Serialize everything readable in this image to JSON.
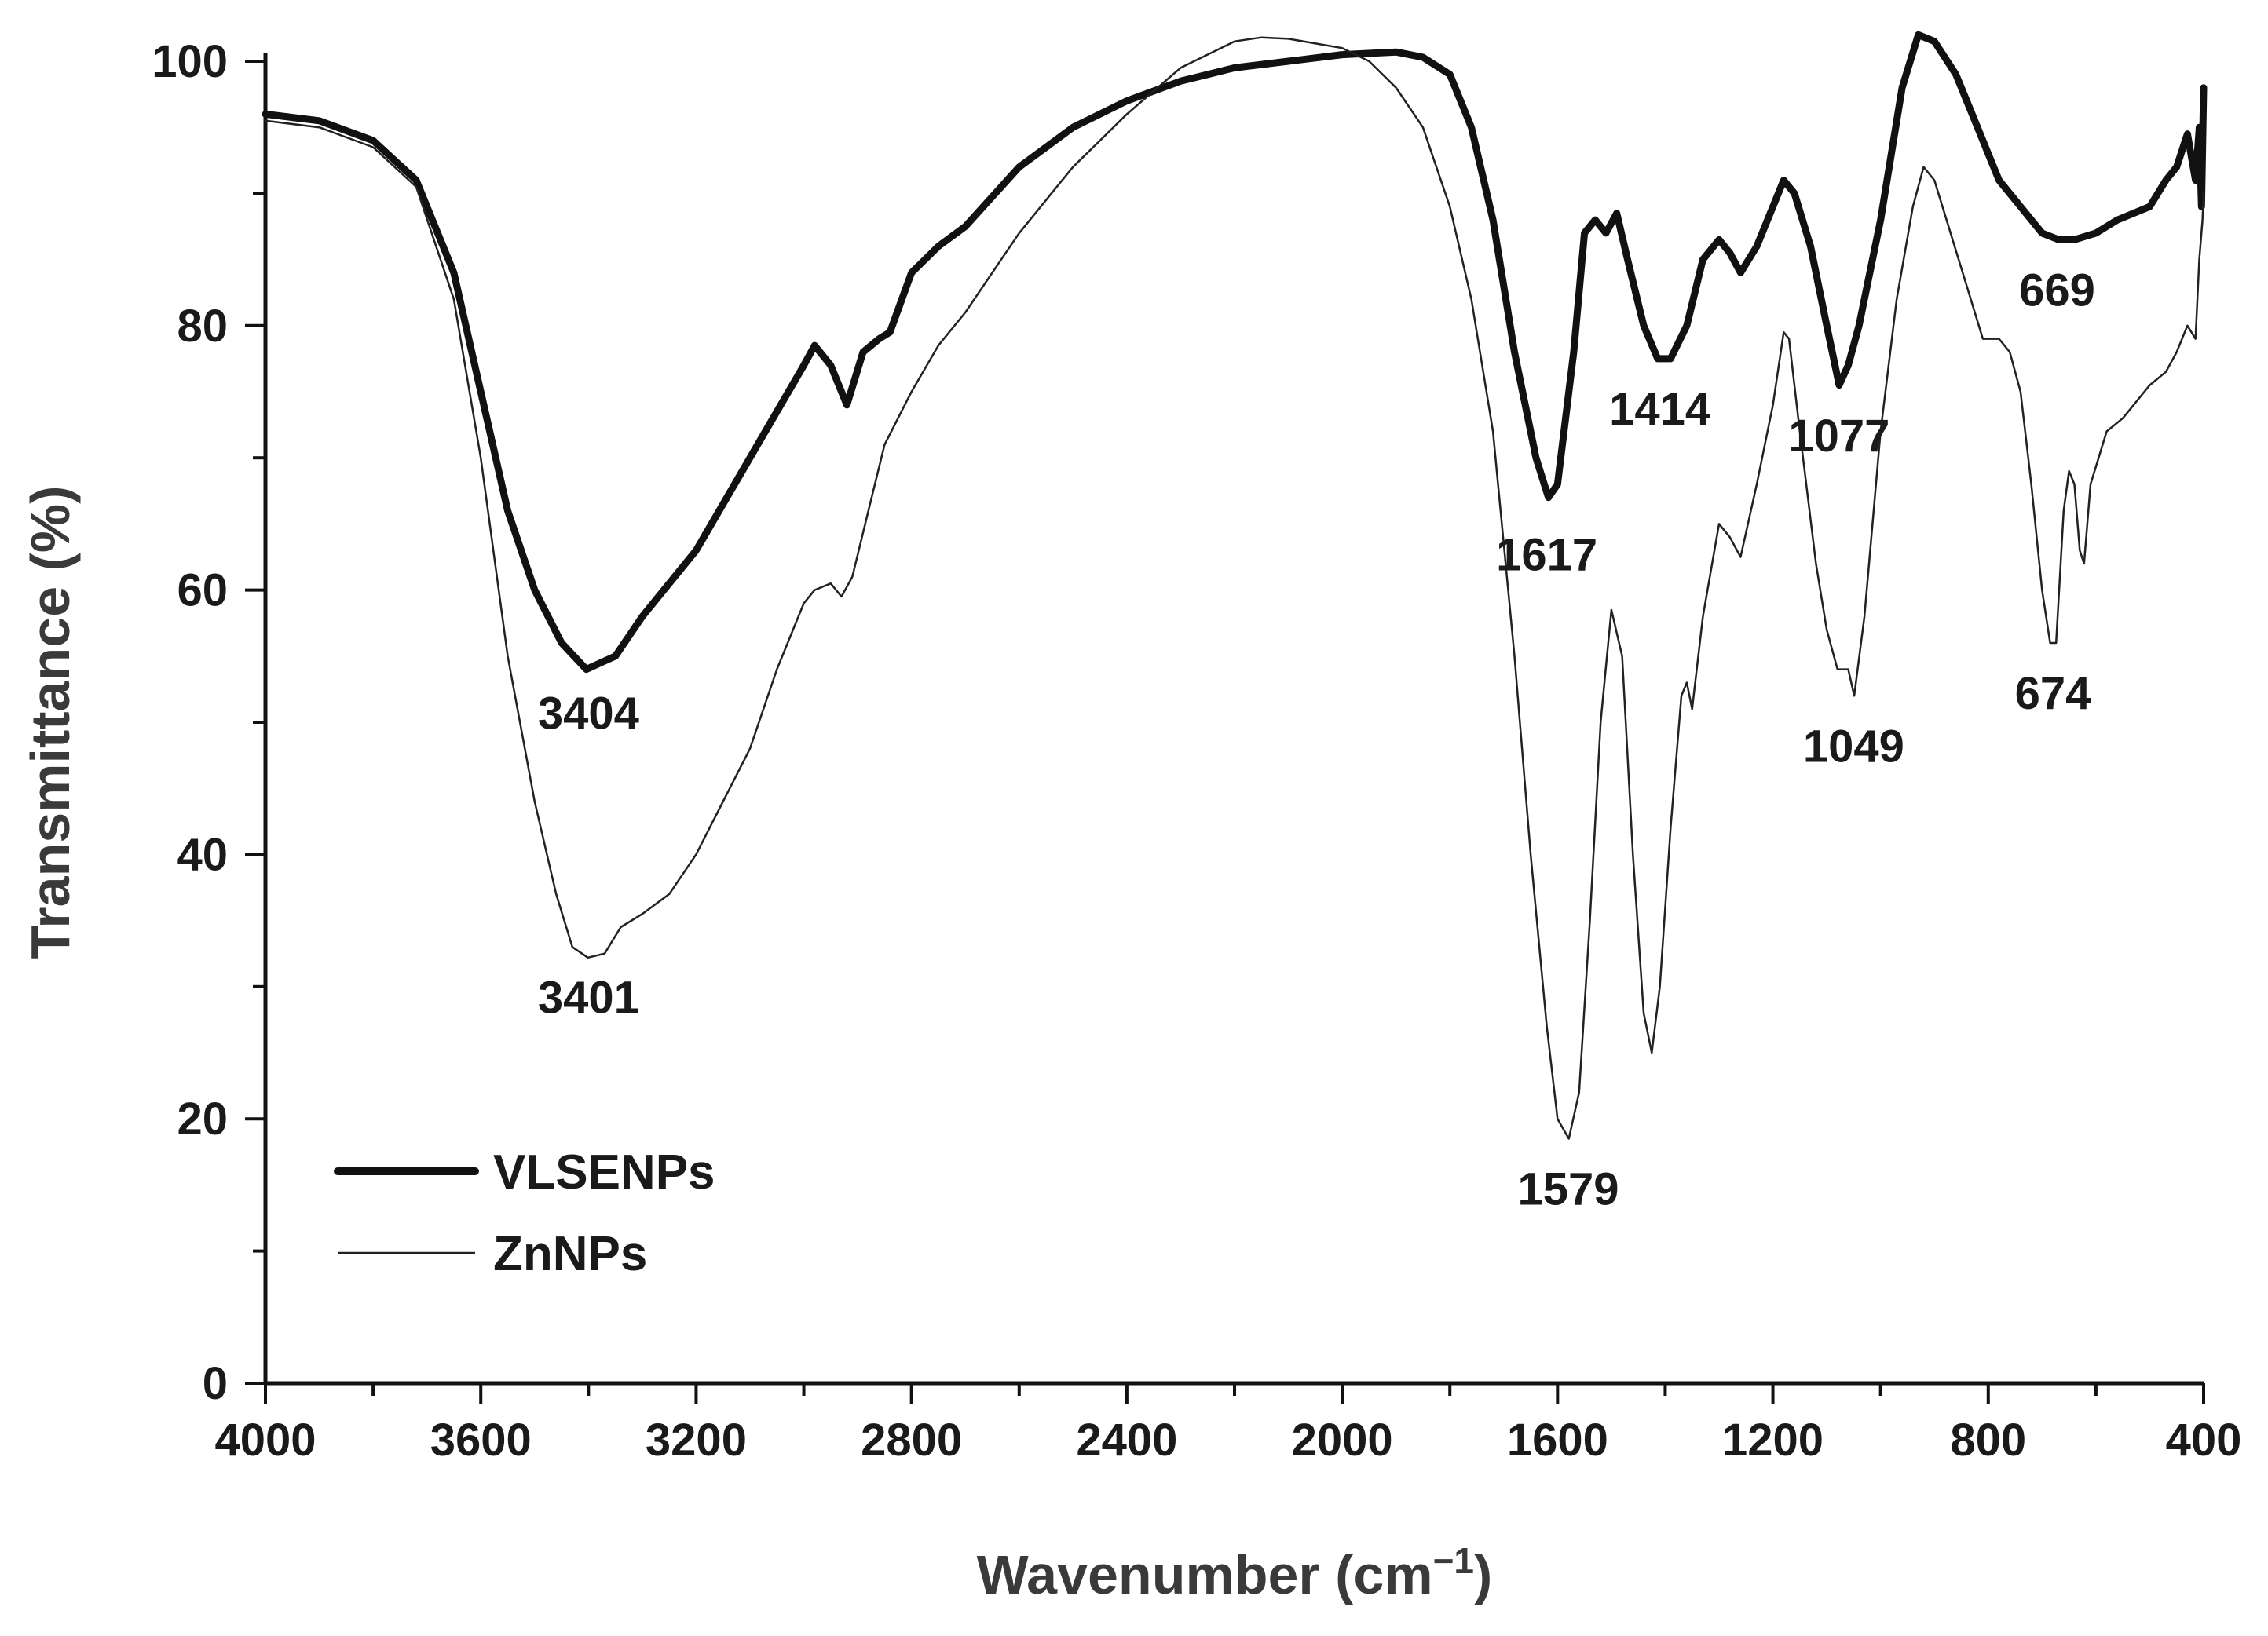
{
  "chart_data": {
    "type": "line",
    "title": "",
    "xlabel": "Wavenumber (cm",
    "xlabel_superscript": "−1",
    "xlabel_close": ")",
    "ylabel": "Transmittance (%)",
    "xlim": [
      4000,
      400
    ],
    "ylim": [
      0,
      100
    ],
    "x_ticks": [
      4000,
      3600,
      3200,
      2800,
      2400,
      2000,
      1600,
      1200,
      800,
      400
    ],
    "y_ticks": [
      0,
      20,
      40,
      60,
      80,
      100
    ],
    "x_tick_labels": [
      "4000",
      "3600",
      "3200",
      "2800",
      "2400",
      "2000",
      "1600",
      "1200",
      "800",
      "400"
    ],
    "y_tick_labels": [
      "0",
      "20",
      "40",
      "60",
      "80",
      "100"
    ],
    "legend_position": "bottom-left",
    "series": [
      {
        "name": "VLSENPs",
        "style": "thick",
        "color": "#111111",
        "points": [
          [
            4000,
            96
          ],
          [
            3900,
            95.5
          ],
          [
            3800,
            94
          ],
          [
            3720,
            91
          ],
          [
            3650,
            84
          ],
          [
            3600,
            75
          ],
          [
            3550,
            66
          ],
          [
            3500,
            60
          ],
          [
            3450,
            56
          ],
          [
            3404,
            54
          ],
          [
            3350,
            55
          ],
          [
            3300,
            58
          ],
          [
            3200,
            63
          ],
          [
            3100,
            70
          ],
          [
            3000,
            77
          ],
          [
            2980,
            78.5
          ],
          [
            2950,
            77
          ],
          [
            2920,
            74
          ],
          [
            2890,
            78
          ],
          [
            2860,
            79
          ],
          [
            2840,
            79.5
          ],
          [
            2800,
            84
          ],
          [
            2750,
            86
          ],
          [
            2700,
            87.5
          ],
          [
            2600,
            92
          ],
          [
            2500,
            95
          ],
          [
            2400,
            97
          ],
          [
            2300,
            98.5
          ],
          [
            2200,
            99.5
          ],
          [
            2100,
            100
          ],
          [
            2000,
            100.5
          ],
          [
            1900,
            100.7
          ],
          [
            1850,
            100.3
          ],
          [
            1800,
            99
          ],
          [
            1760,
            95
          ],
          [
            1720,
            88
          ],
          [
            1680,
            78
          ],
          [
            1640,
            70
          ],
          [
            1617,
            67
          ],
          [
            1600,
            68
          ],
          [
            1570,
            78
          ],
          [
            1550,
            87
          ],
          [
            1530,
            88
          ],
          [
            1510,
            87
          ],
          [
            1490,
            88.5
          ],
          [
            1470,
            85
          ],
          [
            1440,
            80
          ],
          [
            1414,
            77.5
          ],
          [
            1390,
            77.5
          ],
          [
            1360,
            80
          ],
          [
            1330,
            85
          ],
          [
            1300,
            86.5
          ],
          [
            1280,
            85.5
          ],
          [
            1260,
            84
          ],
          [
            1230,
            86
          ],
          [
            1200,
            89
          ],
          [
            1180,
            91
          ],
          [
            1160,
            90
          ],
          [
            1130,
            86
          ],
          [
            1100,
            80
          ],
          [
            1077,
            75.5
          ],
          [
            1060,
            77
          ],
          [
            1040,
            80
          ],
          [
            1000,
            88
          ],
          [
            960,
            98
          ],
          [
            930,
            102
          ],
          [
            900,
            101.5
          ],
          [
            860,
            99
          ],
          [
            820,
            95
          ],
          [
            780,
            91
          ],
          [
            740,
            89
          ],
          [
            700,
            87
          ],
          [
            669,
            86.5
          ],
          [
            640,
            86.5
          ],
          [
            600,
            87
          ],
          [
            560,
            88
          ],
          [
            500,
            89
          ],
          [
            470,
            91
          ],
          [
            450,
            92
          ],
          [
            430,
            94.5
          ],
          [
            415,
            91
          ],
          [
            408,
            95
          ],
          [
            404,
            89
          ],
          [
            400,
            98
          ]
        ]
      },
      {
        "name": "ZnNPs",
        "style": "thin",
        "color": "#222222",
        "points": [
          [
            4000,
            95.5
          ],
          [
            3900,
            95
          ],
          [
            3800,
            93.5
          ],
          [
            3720,
            90.5
          ],
          [
            3650,
            82
          ],
          [
            3600,
            70
          ],
          [
            3550,
            55
          ],
          [
            3500,
            44
          ],
          [
            3460,
            37
          ],
          [
            3430,
            33
          ],
          [
            3401,
            32.2
          ],
          [
            3370,
            32.5
          ],
          [
            3340,
            34.5
          ],
          [
            3300,
            35.5
          ],
          [
            3250,
            37
          ],
          [
            3200,
            40
          ],
          [
            3150,
            44
          ],
          [
            3100,
            48
          ],
          [
            3050,
            54
          ],
          [
            3000,
            59
          ],
          [
            2980,
            60
          ],
          [
            2950,
            60.5
          ],
          [
            2930,
            59.5
          ],
          [
            2910,
            61
          ],
          [
            2880,
            66
          ],
          [
            2850,
            71
          ],
          [
            2800,
            75
          ],
          [
            2750,
            78.5
          ],
          [
            2700,
            81
          ],
          [
            2650,
            84
          ],
          [
            2600,
            87
          ],
          [
            2500,
            92
          ],
          [
            2400,
            96
          ],
          [
            2300,
            99.5
          ],
          [
            2200,
            101.5
          ],
          [
            2150,
            101.8
          ],
          [
            2100,
            101.7
          ],
          [
            2000,
            101
          ],
          [
            1950,
            100
          ],
          [
            1900,
            98
          ],
          [
            1850,
            95
          ],
          [
            1800,
            89
          ],
          [
            1760,
            82
          ],
          [
            1720,
            72
          ],
          [
            1680,
            55
          ],
          [
            1650,
            40
          ],
          [
            1620,
            27
          ],
          [
            1600,
            20
          ],
          [
            1579,
            18.5
          ],
          [
            1560,
            22
          ],
          [
            1540,
            35
          ],
          [
            1520,
            50
          ],
          [
            1500,
            58.5
          ],
          [
            1480,
            55
          ],
          [
            1460,
            40
          ],
          [
            1440,
            28
          ],
          [
            1425,
            25
          ],
          [
            1410,
            30
          ],
          [
            1390,
            42
          ],
          [
            1370,
            52
          ],
          [
            1360,
            53
          ],
          [
            1350,
            51
          ],
          [
            1330,
            58
          ],
          [
            1300,
            65
          ],
          [
            1280,
            64
          ],
          [
            1260,
            62.5
          ],
          [
            1230,
            68
          ],
          [
            1200,
            74
          ],
          [
            1180,
            79.5
          ],
          [
            1170,
            79
          ],
          [
            1150,
            72
          ],
          [
            1120,
            62
          ],
          [
            1100,
            57
          ],
          [
            1080,
            54
          ],
          [
            1060,
            54
          ],
          [
            1049,
            52
          ],
          [
            1030,
            58
          ],
          [
            1000,
            72
          ],
          [
            970,
            82
          ],
          [
            940,
            89
          ],
          [
            920,
            92
          ],
          [
            900,
            91
          ],
          [
            870,
            87
          ],
          [
            840,
            83
          ],
          [
            810,
            79
          ],
          [
            780,
            79
          ],
          [
            760,
            78
          ],
          [
            740,
            75
          ],
          [
            720,
            68
          ],
          [
            700,
            60
          ],
          [
            685,
            56
          ],
          [
            674,
            56
          ],
          [
            660,
            66
          ],
          [
            650,
            69
          ],
          [
            640,
            68
          ],
          [
            630,
            63
          ],
          [
            622,
            62
          ],
          [
            610,
            68
          ],
          [
            580,
            72
          ],
          [
            550,
            73
          ],
          [
            500,
            75.5
          ],
          [
            470,
            76.5
          ],
          [
            450,
            78
          ],
          [
            430,
            80
          ],
          [
            415,
            79
          ],
          [
            408,
            85
          ],
          [
            402,
            88
          ],
          [
            400,
            90
          ]
        ]
      }
    ],
    "annotations": [
      {
        "text": "3404",
        "x": 3400,
        "y": 49.5
      },
      {
        "text": "3401",
        "x": 3400,
        "y": 28
      },
      {
        "text": "1617",
        "x": 1620,
        "y": 61.5
      },
      {
        "text": "1414",
        "x": 1410,
        "y": 72.5
      },
      {
        "text": "1077",
        "x": 1077,
        "y": 70.5
      },
      {
        "text": "1579",
        "x": 1580,
        "y": 13.5
      },
      {
        "text": "1049",
        "x": 1050,
        "y": 47
      },
      {
        "text": "674",
        "x": 680,
        "y": 51
      },
      {
        "text": "669",
        "x": 672,
        "y": 81.5
      }
    ]
  }
}
